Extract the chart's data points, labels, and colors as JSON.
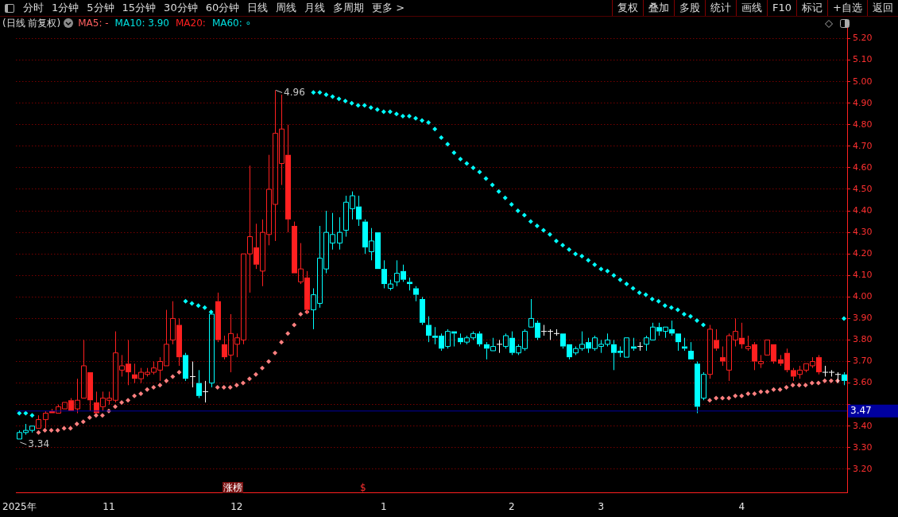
{
  "chart_data": {
    "type": "candlestick",
    "title": "(日线 前复权)",
    "categories": [
      "2025年",
      null,
      null,
      null,
      null,
      null,
      null,
      null,
      null,
      null,
      null,
      null,
      null,
      null,
      "11",
      null,
      null,
      null,
      null,
      null,
      null,
      null,
      null,
      null,
      null,
      null,
      null,
      null,
      null,
      null,
      null,
      null,
      null,
      null,
      "12",
      null,
      null,
      null,
      null,
      null,
      null,
      null,
      null,
      null,
      null,
      null,
      null,
      null,
      null,
      null,
      null,
      null,
      null,
      null,
      null,
      null,
      null,
      "1",
      null,
      null,
      null,
      null,
      null,
      null,
      null,
      null,
      null,
      null,
      null,
      null,
      null,
      null,
      null,
      null,
      null,
      null,
      null,
      "2",
      null,
      null,
      null,
      null,
      null,
      null,
      null,
      null,
      null,
      null,
      null,
      null,
      null,
      "3",
      null,
      null,
      null,
      null,
      null,
      null,
      null,
      null,
      null,
      null,
      null,
      null,
      null,
      null,
      null,
      null,
      null,
      null,
      null,
      null,
      null,
      "4",
      null,
      null,
      null,
      null,
      null,
      null,
      null,
      null,
      null,
      null,
      null,
      null,
      null,
      null,
      null,
      null
    ],
    "ohlc": [
      [
        3.34,
        3.38,
        3.34,
        3.37
      ],
      [
        3.37,
        3.41,
        3.36,
        3.38
      ],
      [
        3.38,
        3.4,
        3.37,
        3.4
      ],
      [
        3.39,
        3.45,
        3.39,
        3.43
      ],
      [
        3.43,
        3.47,
        3.39,
        3.46
      ],
      [
        3.47,
        3.48,
        3.46,
        3.46
      ],
      [
        3.46,
        3.5,
        3.46,
        3.49
      ],
      [
        3.48,
        3.51,
        3.48,
        3.51
      ],
      [
        3.52,
        3.53,
        3.47,
        3.47
      ],
      [
        3.48,
        3.62,
        3.46,
        3.52
      ],
      [
        3.53,
        3.8,
        3.53,
        3.68
      ],
      [
        3.65,
        3.65,
        3.47,
        3.52
      ],
      [
        3.51,
        3.56,
        3.46,
        3.46
      ],
      [
        3.49,
        3.56,
        3.47,
        3.53
      ],
      [
        3.52,
        3.56,
        3.5,
        3.53
      ],
      [
        3.52,
        3.84,
        3.51,
        3.74
      ],
      [
        3.66,
        3.73,
        3.63,
        3.68
      ],
      [
        3.69,
        3.8,
        3.59,
        3.65
      ],
      [
        3.64,
        3.69,
        3.6,
        3.62
      ],
      [
        3.62,
        3.67,
        3.6,
        3.65
      ],
      [
        3.64,
        3.67,
        3.63,
        3.65
      ],
      [
        3.65,
        3.7,
        3.64,
        3.67
      ],
      [
        3.66,
        3.72,
        3.61,
        3.7
      ],
      [
        3.68,
        3.94,
        3.68,
        3.78
      ],
      [
        3.8,
        3.98,
        3.78,
        3.9
      ],
      [
        3.87,
        3.9,
        3.68,
        3.72
      ],
      [
        3.73,
        3.74,
        3.61,
        3.62
      ],
      [
        3.63,
        3.7,
        3.58,
        3.63
      ],
      [
        3.6,
        3.66,
        3.53,
        3.54
      ],
      [
        3.56,
        3.61,
        3.51,
        3.56
      ],
      [
        3.6,
        3.92,
        3.58,
        3.92
      ],
      [
        3.98,
        4.02,
        3.79,
        3.8
      ],
      [
        3.78,
        3.82,
        3.71,
        3.72
      ],
      [
        3.73,
        3.92,
        3.65,
        3.83
      ],
      [
        3.78,
        3.83,
        3.72,
        3.81
      ],
      [
        3.8,
        4.2,
        3.78,
        4.2
      ],
      [
        4.2,
        4.61,
        4.02,
        4.28
      ],
      [
        4.23,
        4.34,
        4.13,
        4.15
      ],
      [
        4.12,
        4.36,
        4.05,
        4.3
      ],
      [
        4.29,
        4.66,
        4.24,
        4.5
      ],
      [
        4.43,
        4.96,
        4.26,
        4.76
      ],
      [
        4.62,
        4.94,
        4.52,
        4.78
      ],
      [
        4.66,
        4.8,
        4.3,
        4.36
      ],
      [
        4.33,
        4.35,
        4.11,
        4.11
      ],
      [
        4.07,
        4.25,
        4.06,
        4.13
      ],
      [
        4.09,
        4.12,
        3.92,
        3.94
      ],
      [
        3.94,
        4.04,
        3.85,
        4.01
      ],
      [
        3.97,
        4.33,
        3.95,
        4.18
      ],
      [
        4.13,
        4.4,
        4.11,
        4.3
      ],
      [
        4.25,
        4.39,
        4.22,
        4.29
      ],
      [
        4.25,
        4.37,
        4.22,
        4.3
      ],
      [
        4.31,
        4.47,
        4.28,
        4.44
      ],
      [
        4.41,
        4.49,
        4.36,
        4.47
      ],
      [
        4.42,
        4.47,
        4.33,
        4.36
      ],
      [
        4.35,
        4.36,
        4.2,
        4.23
      ],
      [
        4.21,
        4.32,
        4.17,
        4.26
      ],
      [
        4.3,
        4.3,
        4.13,
        4.13
      ],
      [
        4.13,
        4.17,
        4.04,
        4.06
      ],
      [
        4.04,
        4.08,
        4.03,
        4.06
      ],
      [
        4.07,
        4.17,
        4.05,
        4.11
      ],
      [
        4.12,
        4.15,
        4.07,
        4.08
      ],
      [
        4.07,
        4.09,
        4.03,
        4.06
      ],
      [
        4.04,
        4.05,
        3.98,
        4.01
      ],
      [
        3.99,
        4.0,
        3.87,
        3.88
      ],
      [
        3.87,
        3.91,
        3.79,
        3.82
      ],
      [
        3.82,
        3.86,
        3.78,
        3.81
      ],
      [
        3.82,
        3.83,
        3.75,
        3.76
      ],
      [
        3.77,
        3.85,
        3.76,
        3.84
      ],
      [
        3.84,
        3.84,
        3.77,
        3.83
      ],
      [
        3.81,
        3.83,
        3.78,
        3.79
      ],
      [
        3.79,
        3.82,
        3.78,
        3.81
      ],
      [
        3.81,
        3.84,
        3.8,
        3.83
      ],
      [
        3.83,
        3.84,
        3.77,
        3.78
      ],
      [
        3.78,
        3.79,
        3.71,
        3.76
      ],
      [
        3.75,
        3.81,
        3.75,
        3.77
      ],
      [
        3.78,
        3.8,
        3.74,
        3.78
      ],
      [
        3.77,
        3.83,
        3.76,
        3.82
      ],
      [
        3.81,
        3.84,
        3.73,
        3.74
      ],
      [
        3.74,
        3.78,
        3.73,
        3.77
      ],
      [
        3.76,
        3.85,
        3.75,
        3.84
      ],
      [
        3.86,
        3.99,
        3.86,
        3.9
      ],
      [
        3.88,
        3.89,
        3.8,
        3.81
      ],
      [
        3.84,
        3.87,
        3.82,
        3.84
      ],
      [
        3.84,
        3.85,
        3.8,
        3.84
      ],
      [
        3.83,
        3.85,
        3.82,
        3.83
      ],
      [
        3.83,
        3.83,
        3.76,
        3.77
      ],
      [
        3.78,
        3.78,
        3.71,
        3.72
      ],
      [
        3.74,
        3.77,
        3.73,
        3.76
      ],
      [
        3.76,
        3.84,
        3.75,
        3.78
      ],
      [
        3.79,
        3.81,
        3.74,
        3.76
      ],
      [
        3.76,
        3.82,
        3.75,
        3.81
      ],
      [
        3.77,
        3.8,
        3.74,
        3.78
      ],
      [
        3.78,
        3.83,
        3.77,
        3.8
      ],
      [
        3.78,
        3.8,
        3.66,
        3.74
      ],
      [
        3.75,
        3.77,
        3.72,
        3.74
      ],
      [
        3.72,
        3.81,
        3.72,
        3.81
      ],
      [
        3.77,
        3.81,
        3.75,
        3.76
      ],
      [
        3.77,
        3.79,
        3.75,
        3.77
      ],
      [
        3.78,
        3.82,
        3.75,
        3.81
      ],
      [
        3.8,
        3.88,
        3.8,
        3.86
      ],
      [
        3.86,
        3.88,
        3.82,
        3.84
      ],
      [
        3.84,
        3.86,
        3.81,
        3.86
      ],
      [
        3.85,
        3.89,
        3.82,
        3.83
      ],
      [
        3.83,
        3.83,
        3.75,
        3.79
      ],
      [
        3.77,
        3.81,
        3.75,
        3.76
      ],
      [
        3.75,
        3.79,
        3.71,
        3.71
      ],
      [
        3.69,
        3.7,
        3.46,
        3.49
      ],
      [
        3.53,
        3.65,
        3.52,
        3.64
      ],
      [
        3.64,
        3.87,
        3.62,
        3.85
      ],
      [
        3.8,
        3.85,
        3.75,
        3.76
      ],
      [
        3.72,
        3.77,
        3.68,
        3.7
      ],
      [
        3.66,
        3.83,
        3.61,
        3.82
      ],
      [
        3.8,
        3.9,
        3.77,
        3.84
      ],
      [
        3.81,
        3.88,
        3.76,
        3.78
      ],
      [
        3.76,
        3.82,
        3.75,
        3.77
      ],
      [
        3.78,
        3.79,
        3.66,
        3.7
      ],
      [
        3.69,
        3.73,
        3.67,
        3.7
      ],
      [
        3.73,
        3.8,
        3.73,
        3.8
      ],
      [
        3.78,
        3.78,
        3.69,
        3.7
      ],
      [
        3.71,
        3.73,
        3.68,
        3.69
      ],
      [
        3.74,
        3.76,
        3.65,
        3.66
      ],
      [
        3.66,
        3.67,
        3.61,
        3.63
      ],
      [
        3.64,
        3.68,
        3.62,
        3.66
      ],
      [
        3.66,
        3.69,
        3.65,
        3.69
      ],
      [
        3.68,
        3.72,
        3.67,
        3.7
      ],
      [
        3.72,
        3.73,
        3.64,
        3.65
      ],
      [
        3.65,
        3.68,
        3.63,
        3.65
      ],
      [
        3.65,
        3.66,
        3.63,
        3.65
      ],
      [
        3.64,
        3.65,
        3.6,
        3.64
      ],
      [
        3.64,
        3.65,
        3.59,
        3.61
      ]
    ],
    "colors": [
      "#00ffff",
      "#00ffff",
      "#00ffff",
      "#ff2020",
      "#ff2020",
      "#ff2020",
      "#ff2020",
      "#ff2020",
      "#ff2020",
      "#ff2020",
      "#ff2020",
      "#ff2020",
      "#ff2020",
      "#ff2020",
      "#ff2020",
      "#ff2020",
      "#ff2020",
      "#ff2020",
      "#ff2020",
      "#ff2020",
      "#ff2020",
      "#ff2020",
      "#ff2020",
      "#ff2020",
      "#ff2020",
      "#ff2020",
      "#00ffff",
      "#ffffff",
      "#00ffff",
      "#ffffff",
      "#00ffff",
      "#ff2020",
      "#ff2020",
      "#ff2020",
      "#ff2020",
      "#ff2020",
      "#ff2020",
      "#ff2020",
      "#ff2020",
      "#ff2020",
      "#ff2020",
      "#ff2020",
      "#ff2020",
      "#ff2020",
      "#ff2020",
      "#ff2020",
      "#00ffff",
      "#00ffff",
      "#00ffff",
      "#00ffff",
      "#00ffff",
      "#00ffff",
      "#00ffff",
      "#00ffff",
      "#00ffff",
      "#00ffff",
      "#00ffff",
      "#00ffff",
      "#00ffff",
      "#00ffff",
      "#00ffff",
      "#00ffff",
      "#00ffff",
      "#00ffff",
      "#00ffff",
      "#00ffff",
      "#00ffff",
      "#00ffff",
      "#00ffff",
      "#00ffff",
      "#00ffff",
      "#00ffff",
      "#00ffff",
      "#00ffff",
      "#00ffff",
      "#ffffff",
      "#00ffff",
      "#00ffff",
      "#00ffff",
      "#00ffff",
      "#00ffff",
      "#00ffff",
      "#ffffff",
      "#ffffff",
      "#ffffff",
      "#00ffff",
      "#00ffff",
      "#00ffff",
      "#00ffff",
      "#00ffff",
      "#00ffff",
      "#00ffff",
      "#00ffff",
      "#00ffff",
      "#00ffff",
      "#00ffff",
      "#00ffff",
      "#ffffff",
      "#00ffff",
      "#00ffff",
      "#00ffff",
      "#00ffff",
      "#00ffff",
      "#00ffff",
      "#00ffff",
      "#00ffff",
      "#00ffff",
      "#00ffff",
      "#ff2020",
      "#ff2020",
      "#ff2020",
      "#ff2020",
      "#ff2020",
      "#ff2020",
      "#ff2020",
      "#ff2020",
      "#ff2020",
      "#ff2020",
      "#ff2020",
      "#ff2020",
      "#ff2020",
      "#ff2020",
      "#ff2020",
      "#ff2020",
      "#ff2020",
      "#ff2020",
      "#ffffff",
      "#ffffff",
      "#ffffff",
      "#00ffff"
    ],
    "series": [
      {
        "type": "scatter",
        "color": "#00ffff",
        "values": [
          3.46,
          3.46,
          3.45,
          null,
          null,
          null,
          null,
          null,
          null,
          null,
          null,
          null,
          null,
          null,
          null,
          null,
          null,
          null,
          null,
          null,
          null,
          null,
          null,
          null,
          null,
          null,
          3.98,
          3.97,
          3.96,
          3.95,
          3.93,
          null,
          null,
          null,
          null,
          null,
          null,
          null,
          null,
          null,
          null,
          null,
          null,
          null,
          null,
          null,
          4.95,
          4.95,
          4.94,
          4.93,
          4.92,
          4.91,
          4.9,
          4.89,
          4.89,
          4.88,
          4.87,
          4.86,
          4.86,
          4.85,
          4.84,
          4.84,
          4.83,
          4.82,
          4.81,
          4.78,
          4.74,
          4.71,
          4.67,
          4.64,
          4.62,
          4.6,
          4.58,
          4.55,
          4.52,
          4.49,
          4.46,
          4.43,
          4.4,
          4.38,
          4.35,
          4.33,
          4.31,
          4.29,
          4.26,
          4.24,
          4.22,
          4.2,
          4.19,
          4.17,
          4.15,
          4.13,
          4.12,
          4.1,
          4.08,
          4.06,
          4.04,
          4.02,
          4.01,
          3.99,
          3.98,
          3.96,
          3.95,
          3.94,
          3.92,
          3.91,
          3.89,
          3.87,
          null,
          null,
          null,
          null,
          null,
          null,
          null,
          null,
          null,
          null,
          null,
          null,
          null,
          null,
          null,
          null,
          null,
          null,
          null,
          null,
          null,
          3.9
        ]
      },
      {
        "type": "scatter",
        "color": "#ff8080",
        "values": [
          null,
          null,
          null,
          3.37,
          3.38,
          3.38,
          3.38,
          3.39,
          3.39,
          3.41,
          3.42,
          3.44,
          3.45,
          3.45,
          3.47,
          3.49,
          3.51,
          3.52,
          3.54,
          3.55,
          3.57,
          3.58,
          3.59,
          3.61,
          3.63,
          3.65,
          null,
          null,
          null,
          null,
          null,
          3.58,
          3.58,
          3.58,
          3.59,
          3.6,
          3.62,
          3.64,
          3.67,
          3.7,
          3.74,
          3.79,
          3.83,
          3.87,
          3.92,
          3.93,
          null,
          null,
          null,
          null,
          null,
          null,
          null,
          null,
          null,
          null,
          null,
          null,
          null,
          null,
          null,
          null,
          null,
          null,
          null,
          null,
          null,
          null,
          null,
          null,
          null,
          null,
          null,
          null,
          null,
          null,
          null,
          null,
          null,
          null,
          null,
          null,
          null,
          null,
          null,
          null,
          null,
          null,
          null,
          null,
          null,
          null,
          null,
          null,
          null,
          null,
          null,
          null,
          null,
          null,
          null,
          null,
          null,
          null,
          null,
          null,
          null,
          null,
          3.52,
          3.53,
          3.53,
          3.53,
          3.54,
          3.54,
          3.55,
          3.55,
          3.56,
          3.56,
          3.57,
          3.57,
          3.58,
          3.59,
          3.59,
          3.59,
          3.6,
          3.6,
          3.61,
          3.61,
          3.61,
          null
        ]
      }
    ],
    "marker": "diamond",
    "ylim": [
      3.09,
      5.27
    ],
    "yticks": [
      {
        "value": 3.2,
        "label": "3.20"
      },
      {
        "value": 3.3,
        "label": "3.30"
      },
      {
        "value": 3.4,
        "label": "3.40"
      },
      {
        "value": 3.5,
        "label": null
      },
      {
        "value": 3.6,
        "label": "3.60"
      },
      {
        "value": 3.7,
        "label": "3.70"
      },
      {
        "value": 3.8,
        "label": "3.80"
      },
      {
        "value": 3.9,
        "label": "3.90"
      },
      {
        "value": 4.0,
        "label": "4.00"
      },
      {
        "value": 4.1,
        "label": "4.10"
      },
      {
        "value": 4.2,
        "label": "4.20"
      },
      {
        "value": 4.3,
        "label": "4.30"
      },
      {
        "value": 4.4,
        "label": "4.40"
      },
      {
        "value": 4.5,
        "label": "4.50"
      },
      {
        "value": 4.6,
        "label": "4.60"
      },
      {
        "value": 4.7,
        "label": "4.70"
      },
      {
        "value": 4.8,
        "label": "4.80"
      },
      {
        "value": 4.9,
        "label": "4.90"
      },
      {
        "value": 5.0,
        "label": "5.00"
      },
      {
        "value": 5.1,
        "label": "5.10"
      },
      {
        "value": 5.2,
        "label": "5.20"
      }
    ],
    "grid": "y",
    "ref_lines": [
      {
        "axis": "y",
        "value": 3.47,
        "label": "3.47",
        "color": "#0000a0"
      }
    ],
    "annotations": [
      "分时",
      "1分钟",
      "5分钟",
      "15分钟",
      "30分钟",
      "60分钟",
      "日线",
      "周线",
      "月线",
      "多周期",
      "更多 >",
      "复权",
      "叠加",
      "多股",
      "统计",
      "画线",
      "F10",
      "标记",
      "+自选",
      "返回",
      "MA5: -",
      "MA10: 3.90",
      "MA20:",
      "MA60: ∘",
      "涨榜",
      "$",
      "4.96",
      "3.34"
    ]
  }
}
